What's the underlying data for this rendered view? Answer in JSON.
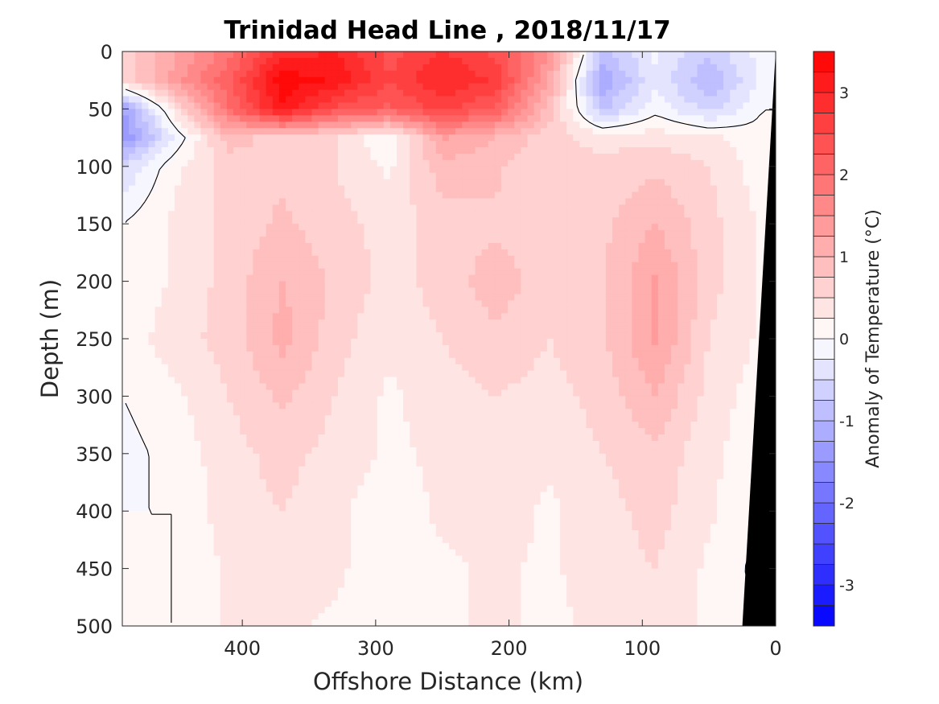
{
  "chart_data": {
    "type": "heatmap",
    "title": "Trinidad Head Line , 2018/11/17",
    "xlabel": "Offshore Distance (km)",
    "ylabel": "Depth (m)",
    "xlim": [
      490,
      0
    ],
    "ylim": [
      0,
      500
    ],
    "x_reversed": true,
    "y_reversed": true,
    "xticks": [
      "400",
      "300",
      "200",
      "100",
      "0"
    ],
    "yticks": [
      "0",
      "50",
      "100",
      "150",
      "200",
      "250",
      "300",
      "350",
      "400",
      "450",
      "500"
    ],
    "colorbar": {
      "label": "Anomaly of Temperature (°C)",
      "range": [
        -3.5,
        3.5
      ],
      "step": 0.25,
      "ticks": [
        "3",
        "2",
        "1",
        "0",
        "-1",
        "-2",
        "-3"
      ],
      "low_color": "#0000ff",
      "mid_color": "#ffffff",
      "high_color": "#ff0000"
    },
    "grid": false,
    "bathymetry_color": "#000000",
    "x": [
      490,
      450,
      410,
      370,
      330,
      290,
      250,
      210,
      170,
      130,
      90,
      50,
      10
    ],
    "depth": [
      0,
      25,
      50,
      75,
      100,
      150,
      200,
      250,
      300,
      350,
      400,
      450,
      500
    ],
    "values": [
      [
        0.6,
        1.2,
        1.9,
        2.9,
        3.0,
        2.4,
        2.8,
        2.4,
        1.6,
        -0.8,
        -0.2,
        -0.7,
        -0.1
      ],
      [
        0.5,
        1.4,
        2.2,
        3.4,
        3.2,
        2.5,
        3.0,
        2.7,
        1.2,
        -1.2,
        -0.3,
        -1.0,
        -0.2
      ],
      [
        -1.3,
        0.4,
        2.0,
        3.2,
        2.4,
        2.2,
        2.6,
        2.2,
        0.9,
        -0.8,
        -0.1,
        -0.6,
        0.0
      ],
      [
        -1.5,
        -0.2,
        0.9,
        0.6,
        0.5,
        0.0,
        1.3,
        1.0,
        0.6,
        0.4,
        0.4,
        0.3,
        0.1
      ],
      [
        -0.5,
        0.2,
        0.6,
        0.7,
        0.5,
        0.2,
        0.9,
        0.8,
        0.5,
        0.6,
        0.7,
        0.5,
        0.1
      ],
      [
        0.0,
        0.3,
        0.6,
        0.8,
        0.6,
        0.4,
        0.6,
        0.7,
        0.6,
        0.7,
        1.0,
        0.6,
        0.2
      ],
      [
        0.0,
        0.3,
        0.6,
        1.0,
        0.7,
        0.4,
        0.6,
        0.9,
        0.6,
        0.7,
        1.3,
        0.6,
        0.2
      ],
      [
        0.1,
        0.4,
        0.6,
        1.1,
        0.6,
        0.3,
        0.5,
        0.7,
        0.5,
        0.7,
        1.3,
        0.5,
        0.2
      ],
      [
        0.0,
        0.2,
        0.5,
        0.8,
        0.5,
        0.2,
        0.4,
        0.5,
        0.4,
        0.6,
        1.0,
        0.4,
        0.1
      ],
      [
        -0.1,
        0.1,
        0.4,
        0.6,
        0.4,
        0.2,
        0.3,
        0.4,
        0.3,
        0.5,
        0.7,
        0.3,
        0.1
      ],
      [
        0.0,
        0.0,
        0.4,
        0.5,
        0.3,
        0.1,
        0.3,
        0.4,
        0.2,
        0.4,
        0.6,
        0.3,
        0.0
      ],
      [
        0.0,
        0.0,
        0.3,
        0.4,
        0.3,
        0.1,
        0.2,
        0.3,
        0.2,
        0.4,
        0.5,
        0.2,
        -0.1
      ],
      [
        0.0,
        0.0,
        0.3,
        0.3,
        0.2,
        0.0,
        0.2,
        0.3,
        0.2,
        0.3,
        0.4,
        0.2,
        0.0
      ]
    ],
    "seafloor": [
      [
        0,
        0
      ],
      [
        10,
        200
      ],
      [
        25,
        500
      ]
    ]
  }
}
